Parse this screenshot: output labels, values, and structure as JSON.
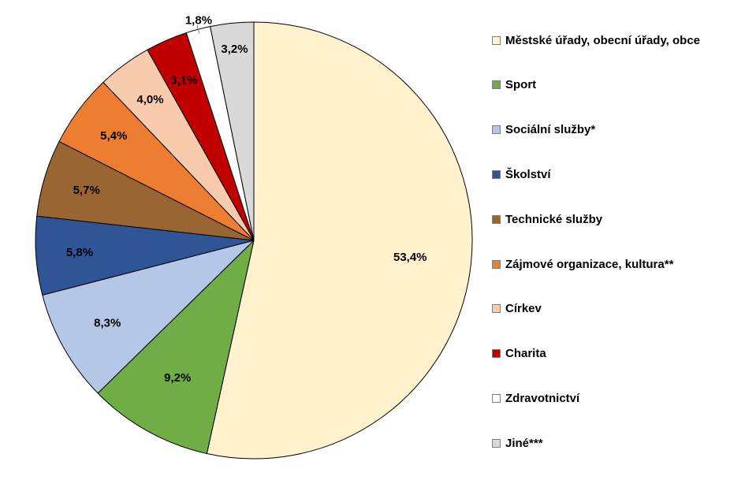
{
  "chart_data": {
    "type": "pie",
    "title": "",
    "start_angle_deg": 0,
    "direction": "clockwise",
    "legend_position": "right",
    "slices": [
      {
        "name": "Městské úřady, obecní úřady, obce",
        "value": 53.4,
        "label": "53,4%",
        "color": "#FFF2CC"
      },
      {
        "name": "Sport",
        "value": 9.2,
        "label": "9,2%",
        "color": "#70AD47"
      },
      {
        "name": "Sociální služby*",
        "value": 8.3,
        "label": "8,3%",
        "color": "#B4C7E7"
      },
      {
        "name": "Školství",
        "value": 5.8,
        "label": "5,8%",
        "color": "#2F5597"
      },
      {
        "name": "Technické služby",
        "value": 5.7,
        "label": "5,7%",
        "color": "#996633"
      },
      {
        "name": "Zájmové organizace, kultura**",
        "value": 5.4,
        "label": "5,4%",
        "color": "#ED7D31"
      },
      {
        "name": "Církev",
        "value": 4.0,
        "label": "4,0%",
        "color": "#F8CBAD"
      },
      {
        "name": "Charita",
        "value": 3.1,
        "label": "3,1%",
        "color": "#C00000"
      },
      {
        "name": "Zdravotnictví",
        "value": 1.8,
        "label": "1,8%",
        "color": "#FFFFFF"
      },
      {
        "name": "Jiné***",
        "value": 3.2,
        "label": "3,2%",
        "color": "#D9D9D9"
      }
    ]
  }
}
